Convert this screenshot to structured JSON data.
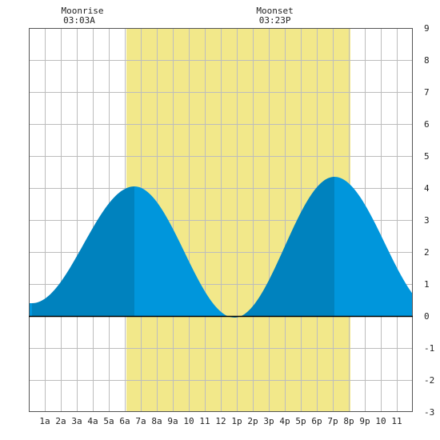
{
  "moon": {
    "rise_label": "Moonrise",
    "rise_time": "03:03A",
    "set_label": "Moonset",
    "set_time": "03:23P"
  },
  "chart_data": {
    "type": "area",
    "title": "",
    "xlabel": "",
    "ylabel": "",
    "x_unit": "hour of day",
    "xlim": [
      0,
      24
    ],
    "ylim": [
      -3,
      9
    ],
    "y_ticks": [
      -3,
      -2,
      -1,
      0,
      1,
      2,
      3,
      4,
      5,
      6,
      7,
      8,
      9
    ],
    "x_ticks": [
      {
        "hour": 1,
        "label": "1a"
      },
      {
        "hour": 2,
        "label": "2a"
      },
      {
        "hour": 3,
        "label": "3a"
      },
      {
        "hour": 4,
        "label": "4a"
      },
      {
        "hour": 5,
        "label": "5a"
      },
      {
        "hour": 6,
        "label": "6a"
      },
      {
        "hour": 7,
        "label": "7a"
      },
      {
        "hour": 8,
        "label": "8a"
      },
      {
        "hour": 9,
        "label": "9a"
      },
      {
        "hour": 10,
        "label": "10"
      },
      {
        "hour": 11,
        "label": "11"
      },
      {
        "hour": 12,
        "label": "12"
      },
      {
        "hour": 13,
        "label": "1p"
      },
      {
        "hour": 14,
        "label": "2p"
      },
      {
        "hour": 15,
        "label": "3p"
      },
      {
        "hour": 16,
        "label": "4p"
      },
      {
        "hour": 17,
        "label": "5p"
      },
      {
        "hour": 18,
        "label": "6p"
      },
      {
        "hour": 19,
        "label": "7p"
      },
      {
        "hour": 20,
        "label": "8p"
      },
      {
        "hour": 21,
        "label": "9p"
      },
      {
        "hour": 22,
        "label": "10"
      },
      {
        "hour": 23,
        "label": "11"
      }
    ],
    "grid": true,
    "daylight": {
      "start_hour": 6.1,
      "end_hour": 20.1,
      "color": "#f2e88a"
    },
    "moonrise_hour": 3.05,
    "moonset_hour": 15.38,
    "tide_extremes": [
      {
        "hour": 0.2,
        "height": 0.4,
        "kind": "low"
      },
      {
        "hour": 6.6,
        "height": 4.05,
        "kind": "high"
      },
      {
        "hour": 12.85,
        "height": -0.05,
        "kind": "low"
      },
      {
        "hour": 19.1,
        "height": 4.35,
        "kind": "high"
      },
      {
        "hour": 25.4,
        "height": 0.2,
        "kind": "low"
      }
    ],
    "end_height": 0.8,
    "colors": {
      "rising": "#0082be",
      "falling": "#0096dc",
      "zero_line": "#000000",
      "grid": "#bdbdbd",
      "background": "#ffffff"
    }
  }
}
